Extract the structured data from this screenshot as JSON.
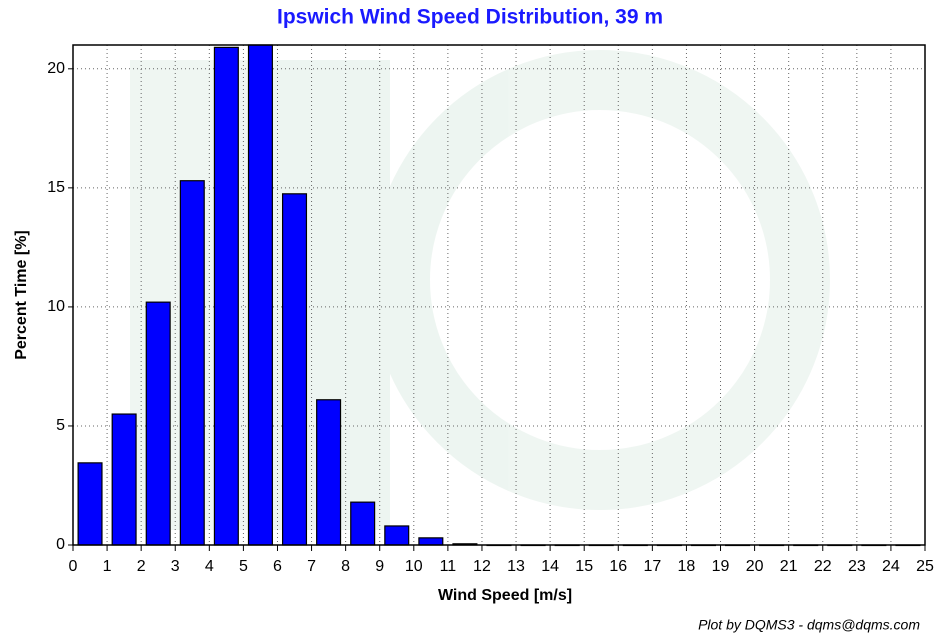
{
  "chart_data": {
    "type": "histogram",
    "title": "Ipswich Wind Speed Distribution, 39 m",
    "x_label": "Wind Speed [m/s]",
    "y_label": "Percent Time [%]",
    "footer": "Plot by DQMS3 - dqms@dqms.com",
    "color": "#0000ff",
    "bins": [
      0,
      1,
      2,
      3,
      4,
      5,
      6,
      7,
      8,
      9,
      10,
      11,
      12,
      13,
      14,
      15,
      16,
      17,
      18,
      19,
      20,
      21,
      22,
      23,
      24,
      25
    ],
    "values": [
      3.45,
      5.5,
      10.2,
      15.3,
      20.9,
      21.0,
      14.75,
      6.1,
      1.8,
      0.8,
      0.3,
      0.05,
      0,
      0,
      0,
      0,
      0,
      0,
      0,
      0,
      0,
      0,
      0,
      0,
      0
    ],
    "xlim": [
      0,
      25
    ],
    "xticks": [
      0,
      1,
      2,
      3,
      4,
      5,
      6,
      7,
      8,
      9,
      10,
      11,
      12,
      13,
      14,
      15,
      16,
      17,
      18,
      19,
      20,
      21,
      22,
      23,
      24,
      25
    ],
    "ylim": [
      0,
      21
    ],
    "yticks": [
      0,
      5,
      10,
      15,
      20
    ],
    "grid": true
  }
}
